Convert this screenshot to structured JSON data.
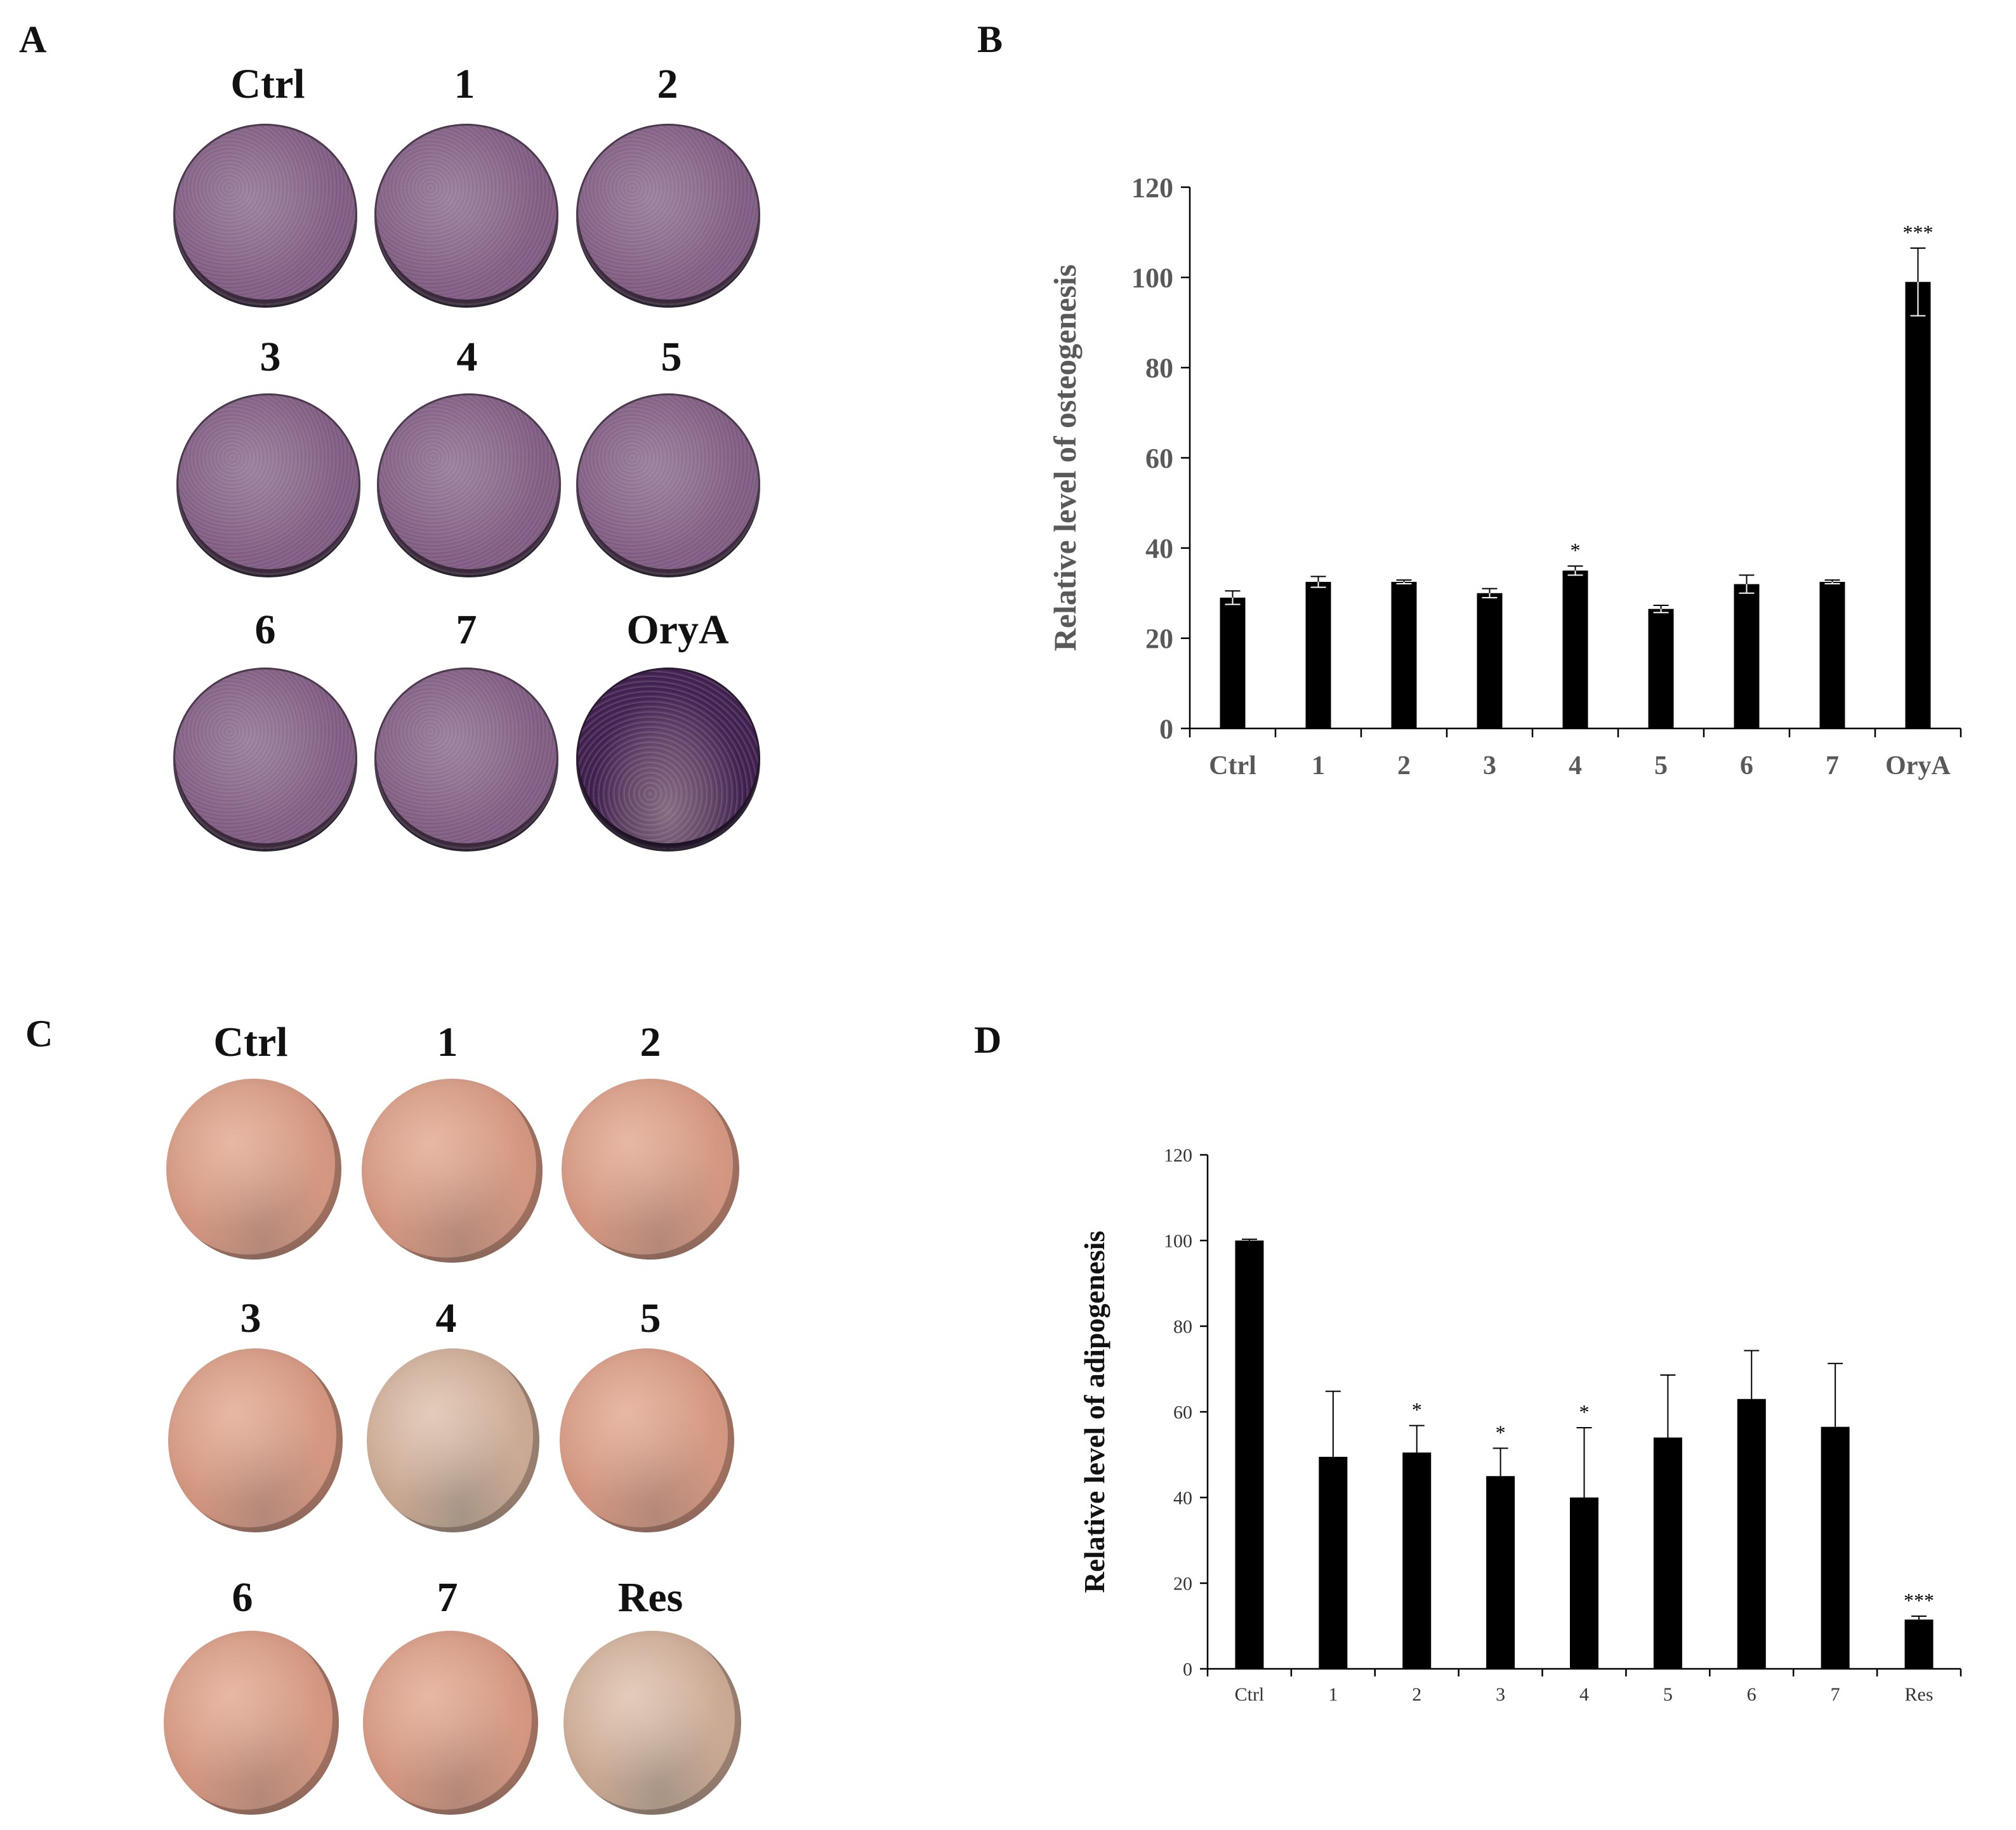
{
  "panels": {
    "A": {
      "letter": "A",
      "labels": [
        "Ctrl",
        "1",
        "2",
        "3",
        "4",
        "5",
        "6",
        "7",
        "OryA"
      ]
    },
    "B": {
      "letter": "B"
    },
    "C": {
      "letter": "C",
      "labels": [
        "Ctrl",
        "1",
        "2",
        "3",
        "4",
        "5",
        "6",
        "7",
        "Res"
      ]
    },
    "D": {
      "letter": "D"
    }
  },
  "colors": {
    "bar": "#000000",
    "axis": "#000000",
    "osteo_tick_text": "#595959"
  },
  "chart_data": [
    {
      "id": "B",
      "type": "bar",
      "title": "",
      "xlabel": "",
      "ylabel": "Relative level of osteogenesis",
      "categories": [
        "Ctrl",
        "1",
        "2",
        "3",
        "4",
        "5",
        "6",
        "7",
        "OryA"
      ],
      "values": [
        29,
        32.5,
        32.5,
        30,
        35,
        26.5,
        32,
        32.5,
        99
      ],
      "errors": [
        1.5,
        1.2,
        0.4,
        1.0,
        1.0,
        0.8,
        2.0,
        0.4,
        7.5
      ],
      "significance": [
        "",
        "",
        "",
        "",
        "*",
        "",
        "",
        "",
        "***"
      ],
      "ylim": [
        0,
        120
      ],
      "yticks": [
        0,
        20,
        40,
        60,
        80,
        100,
        120
      ],
      "grid": false
    },
    {
      "id": "D",
      "type": "bar",
      "title": "",
      "xlabel": "",
      "ylabel": "Relative level of adipogenesis",
      "categories": [
        "Ctrl",
        "1",
        "2",
        "3",
        "4",
        "5",
        "6",
        "7",
        "Res"
      ],
      "values": [
        100,
        49.5,
        50.5,
        45,
        40,
        54,
        63,
        56.5,
        11.5
      ],
      "errors": [
        0.3,
        15.3,
        6.3,
        6.5,
        16.3,
        14.6,
        11.3,
        14.8,
        0.8
      ],
      "significance": [
        "",
        "",
        "*",
        "*",
        "*",
        "",
        "",
        "",
        "***"
      ],
      "ylim": [
        0,
        120
      ],
      "yticks": [
        0,
        20,
        40,
        60,
        80,
        100,
        120
      ],
      "grid": false
    }
  ]
}
